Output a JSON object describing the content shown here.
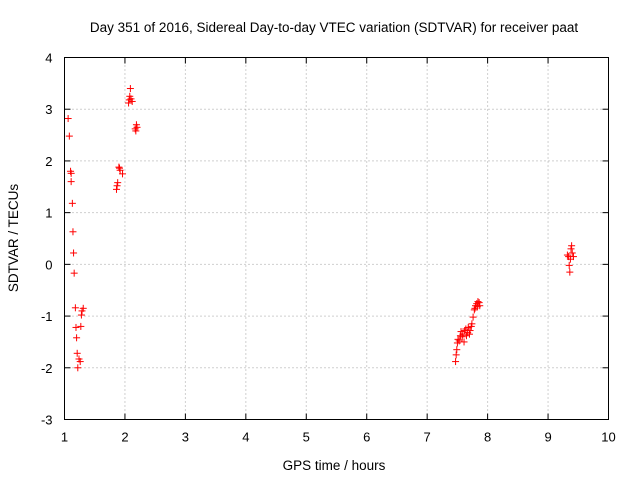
{
  "chart_data": {
    "type": "scatter",
    "title": "Day 351 of 2016, Sidereal Day-to-day VTEC variation (SDTVAR) for receiver paat",
    "xlabel": "GPS time / hours",
    "ylabel": "SDTVAR / TECUs",
    "xlim": [
      1,
      10
    ],
    "ylim": [
      -3,
      4
    ],
    "xticks": [
      1,
      2,
      3,
      4,
      5,
      6,
      7,
      8,
      9,
      10
    ],
    "yticks": [
      -3,
      -2,
      -1,
      0,
      1,
      2,
      3,
      4
    ],
    "xtick_labels": [
      "1",
      "2",
      "3",
      "4",
      "5",
      "6",
      "7",
      "8",
      "9",
      "10"
    ],
    "ytick_labels": [
      "-3",
      "-2",
      "-1",
      "0",
      "1",
      "2",
      "3",
      "4"
    ],
    "grid": true,
    "marker": "+",
    "color": "#ff0000",
    "series": [
      {
        "name": "SDTVAR",
        "points": [
          [
            1.06,
            2.82
          ],
          [
            1.08,
            2.48
          ],
          [
            1.1,
            1.8
          ],
          [
            1.11,
            1.76
          ],
          [
            1.11,
            1.6
          ],
          [
            1.13,
            1.18
          ],
          [
            1.14,
            0.63
          ],
          [
            1.15,
            0.22
          ],
          [
            1.16,
            -0.17
          ],
          [
            1.18,
            -0.84
          ],
          [
            1.19,
            -1.22
          ],
          [
            1.2,
            -1.42
          ],
          [
            1.21,
            -1.72
          ],
          [
            1.22,
            -2.0
          ],
          [
            1.24,
            -1.83
          ],
          [
            1.26,
            -1.88
          ],
          [
            1.27,
            -1.2
          ],
          [
            1.28,
            -0.98
          ],
          [
            1.29,
            -0.9
          ],
          [
            1.31,
            -0.85
          ],
          [
            1.86,
            1.45
          ],
          [
            1.87,
            1.52
          ],
          [
            1.88,
            1.58
          ],
          [
            1.9,
            1.88
          ],
          [
            1.91,
            1.86
          ],
          [
            1.92,
            1.82
          ],
          [
            1.96,
            1.75
          ],
          [
            2.06,
            3.12
          ],
          [
            2.07,
            3.18
          ],
          [
            2.08,
            3.25
          ],
          [
            2.09,
            3.4
          ],
          [
            2.1,
            3.2
          ],
          [
            2.12,
            3.15
          ],
          [
            2.17,
            2.62
          ],
          [
            2.18,
            2.58
          ],
          [
            2.19,
            2.7
          ],
          [
            2.2,
            2.65
          ],
          [
            7.47,
            -1.88
          ],
          [
            7.48,
            -1.75
          ],
          [
            7.49,
            -1.65
          ],
          [
            7.5,
            -1.52
          ],
          [
            7.51,
            -1.45
          ],
          [
            7.53,
            -1.48
          ],
          [
            7.55,
            -1.38
          ],
          [
            7.56,
            -1.3
          ],
          [
            7.58,
            -1.4
          ],
          [
            7.59,
            -1.35
          ],
          [
            7.61,
            -1.5
          ],
          [
            7.62,
            -1.28
          ],
          [
            7.64,
            -1.25
          ],
          [
            7.65,
            -1.38
          ],
          [
            7.67,
            -1.32
          ],
          [
            7.68,
            -1.22
          ],
          [
            7.7,
            -1.35
          ],
          [
            7.71,
            -1.28
          ],
          [
            7.73,
            -1.2
          ],
          [
            7.74,
            -1.15
          ],
          [
            7.76,
            -1.02
          ],
          [
            7.78,
            -0.88
          ],
          [
            7.79,
            -0.85
          ],
          [
            7.8,
            -0.8
          ],
          [
            7.82,
            -0.76
          ],
          [
            7.83,
            -0.82
          ],
          [
            7.84,
            -0.72
          ],
          [
            7.86,
            -0.74
          ],
          [
            7.87,
            -0.8
          ],
          [
            9.32,
            0.18
          ],
          [
            9.34,
            0.15
          ],
          [
            9.35,
            -0.02
          ],
          [
            9.36,
            -0.15
          ],
          [
            9.37,
            0.1
          ],
          [
            9.38,
            0.3
          ],
          [
            9.39,
            0.36
          ],
          [
            9.4,
            0.22
          ],
          [
            9.42,
            0.15
          ]
        ]
      }
    ]
  }
}
